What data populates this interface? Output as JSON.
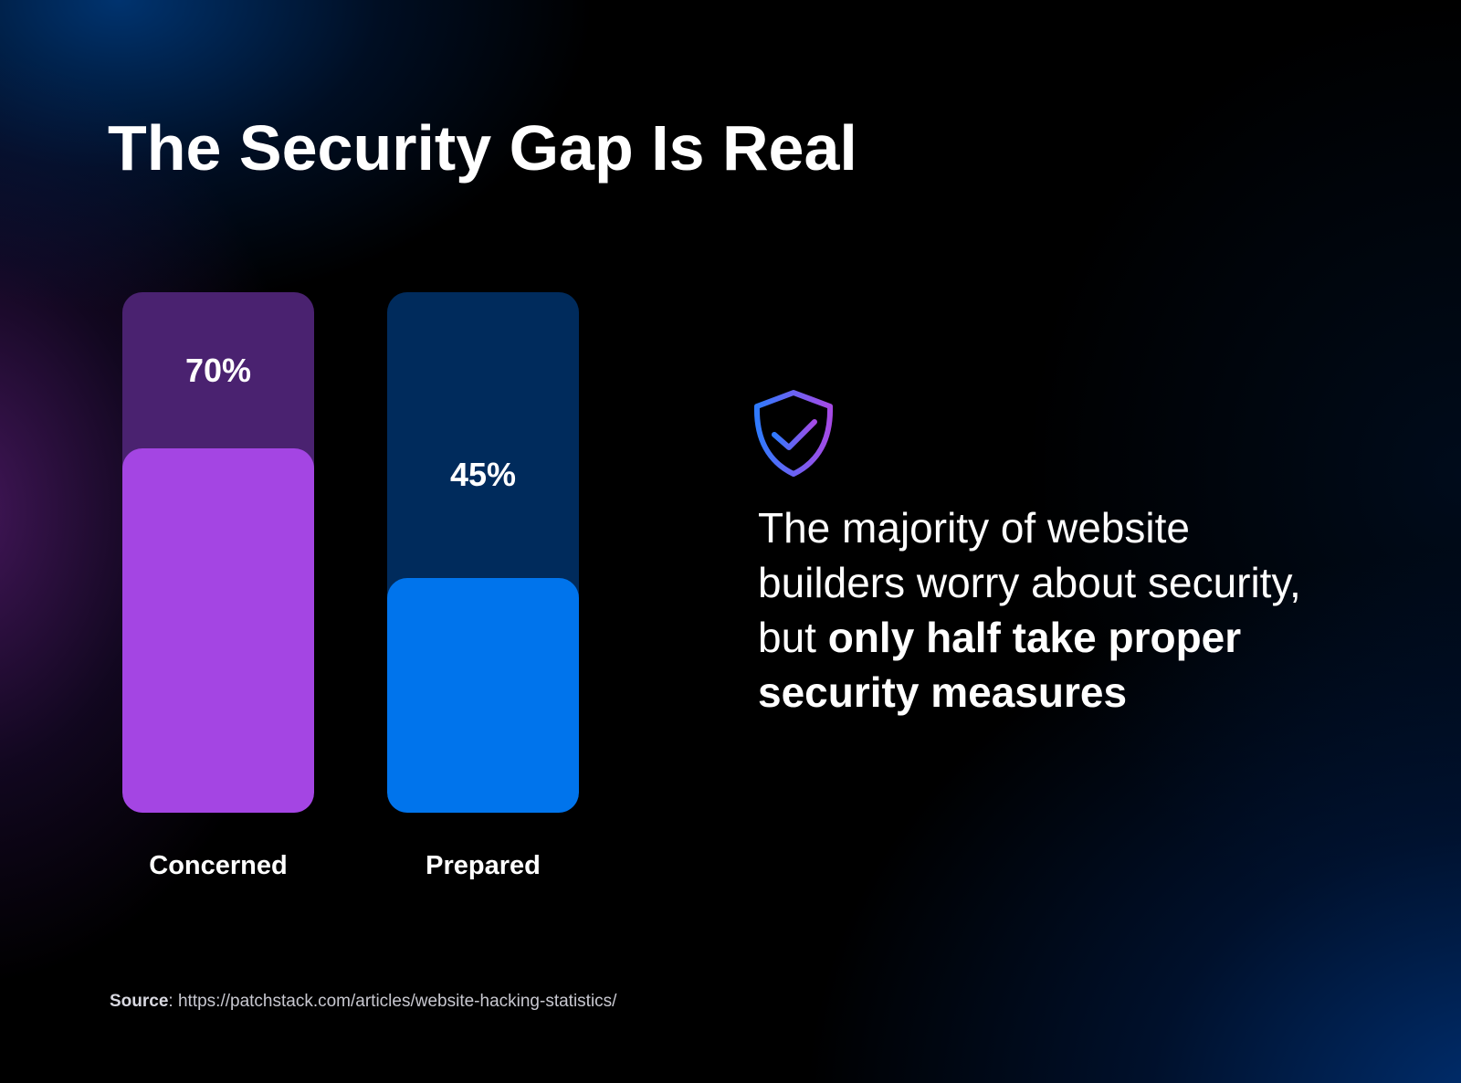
{
  "title": "The Security Gap Is Real",
  "colors": {
    "concerned_track": "#4a2270",
    "concerned_fill": "#a445e3",
    "prepared_track": "#002b5c",
    "prepared_fill": "#0074ec",
    "text": "#ffffff"
  },
  "bars": [
    {
      "label": "Concerned",
      "value_label": "70%",
      "value": 70
    },
    {
      "label": "Prepared",
      "value_label": "45%",
      "value": 45
    }
  ],
  "statement": {
    "regular": "The majority of website builders worry about security, but ",
    "bold": "only half take proper security measures"
  },
  "icon": "shield-check-icon",
  "source": {
    "label": "Source",
    "separator": ": ",
    "url": "https://patchstack.com/articles/website-hacking-statistics/"
  },
  "chart_data": {
    "type": "bar",
    "title": "The Security Gap Is Real",
    "categories": [
      "Concerned",
      "Prepared"
    ],
    "values": [
      70,
      45
    ],
    "value_labels": [
      "70%",
      "45%"
    ],
    "xlabel": "",
    "ylabel": "",
    "ylim": [
      0,
      100
    ],
    "grid": false,
    "legend": null,
    "annotation": "The majority of website builders worry about security, but only half take proper security measures",
    "source": "https://patchstack.com/articles/website-hacking-statistics/"
  }
}
